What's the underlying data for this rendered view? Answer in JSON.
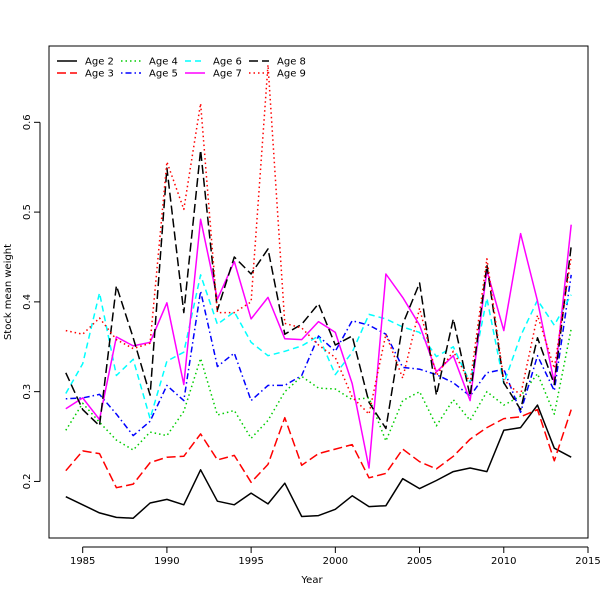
{
  "chart_data": {
    "type": "line",
    "title": "",
    "xlabel": "Year",
    "ylabel": "Stock mean weight",
    "xlim": [
      1983,
      2015
    ],
    "ylim": [
      0.137,
      0.685
    ],
    "x_ticks": [
      1985,
      1990,
      1995,
      2000,
      2005,
      2010,
      2015
    ],
    "y_ticks": [
      0.2,
      0.3,
      0.4,
      0.5,
      0.6
    ],
    "grid": false,
    "legend_position": "top-left",
    "x": [
      1984,
      1985,
      1986,
      1987,
      1988,
      1989,
      1990,
      1991,
      1992,
      1993,
      1994,
      1995,
      1996,
      1997,
      1998,
      1999,
      2000,
      2001,
      2002,
      2003,
      2004,
      2005,
      2006,
      2007,
      2008,
      2009,
      2010,
      2011,
      2012,
      2013,
      2014
    ],
    "series": [
      {
        "name": "Age 2",
        "color": "#000000",
        "dash": "solid",
        "values": [
          0.183,
          0.174,
          0.165,
          0.16,
          0.159,
          0.176,
          0.18,
          0.174,
          0.213,
          0.178,
          0.174,
          0.187,
          0.175,
          0.198,
          0.161,
          0.162,
          0.169,
          0.184,
          0.172,
          0.173,
          0.203,
          0.192,
          0.201,
          0.211,
          0.215,
          0.211,
          0.257,
          0.26,
          0.285,
          0.237,
          0.227
        ]
      },
      {
        "name": "Age 3",
        "color": "#ff0000",
        "dash": "longdash",
        "values": [
          0.212,
          0.234,
          0.231,
          0.193,
          0.197,
          0.221,
          0.227,
          0.228,
          0.253,
          0.224,
          0.229,
          0.199,
          0.219,
          0.271,
          0.218,
          0.231,
          0.236,
          0.241,
          0.204,
          0.209,
          0.236,
          0.222,
          0.214,
          0.228,
          0.247,
          0.26,
          0.27,
          0.272,
          0.28,
          0.223,
          0.28
        ]
      },
      {
        "name": "Age 4",
        "color": "#00cd00",
        "dash": "dotted",
        "values": [
          0.257,
          0.287,
          0.266,
          0.246,
          0.235,
          0.255,
          0.251,
          0.278,
          0.337,
          0.274,
          0.279,
          0.248,
          0.268,
          0.3,
          0.317,
          0.304,
          0.303,
          0.291,
          0.293,
          0.245,
          0.29,
          0.3,
          0.262,
          0.291,
          0.268,
          0.3,
          0.285,
          0.295,
          0.32,
          0.275,
          0.37
        ]
      },
      {
        "name": "Age 5",
        "color": "#0000ff",
        "dash": "dotdash",
        "values": [
          0.292,
          0.293,
          0.297,
          0.275,
          0.251,
          0.267,
          0.307,
          0.29,
          0.412,
          0.328,
          0.343,
          0.29,
          0.307,
          0.307,
          0.318,
          0.362,
          0.345,
          0.379,
          0.374,
          0.364,
          0.327,
          0.325,
          0.319,
          0.31,
          0.295,
          0.321,
          0.325,
          0.277,
          0.34,
          0.301,
          0.43
        ]
      },
      {
        "name": "Age 6",
        "color": "#00ffff",
        "dash": "dashed",
        "values": [
          0.298,
          0.331,
          0.41,
          0.318,
          0.336,
          0.27,
          0.334,
          0.344,
          0.43,
          0.375,
          0.389,
          0.355,
          0.34,
          0.345,
          0.351,
          0.362,
          0.319,
          0.344,
          0.386,
          0.381,
          0.372,
          0.366,
          0.339,
          0.35,
          0.31,
          0.404,
          0.309,
          0.362,
          0.402,
          0.374,
          0.408
        ]
      },
      {
        "name": "Age 7",
        "color": "#ff00ff",
        "dash": "solid",
        "values": [
          0.281,
          0.293,
          0.269,
          0.361,
          0.351,
          0.355,
          0.399,
          0.308,
          0.492,
          0.403,
          0.445,
          0.381,
          0.405,
          0.359,
          0.358,
          0.378,
          0.366,
          0.309,
          0.215,
          0.431,
          0.405,
          0.374,
          0.322,
          0.34,
          0.29,
          0.435,
          0.368,
          0.476,
          0.401,
          0.31,
          0.486
        ]
      },
      {
        "name": "Age 8",
        "color": "#000000",
        "dash": "longdash",
        "values": [
          0.321,
          0.28,
          0.262,
          0.418,
          0.36,
          0.296,
          0.549,
          0.388,
          0.569,
          0.391,
          0.45,
          0.431,
          0.459,
          0.364,
          0.375,
          0.398,
          0.352,
          0.362,
          0.288,
          0.259,
          0.375,
          0.421,
          0.296,
          0.381,
          0.295,
          0.441,
          0.31,
          0.28,
          0.36,
          0.308,
          0.462
        ]
      },
      {
        "name": "Age 9",
        "color": "#ff0000",
        "dash": "dotted",
        "values": [
          0.368,
          0.364,
          0.382,
          0.358,
          0.348,
          0.354,
          0.556,
          0.503,
          0.621,
          0.388,
          0.388,
          0.4,
          0.664,
          0.376,
          0.371,
          0.352,
          0.338,
          0.294,
          0.275,
          0.364,
          0.315,
          0.393,
          0.318,
          0.345,
          0.31,
          0.448,
          0.313,
          0.296,
          0.385,
          0.326,
          0.45
        ]
      }
    ]
  }
}
